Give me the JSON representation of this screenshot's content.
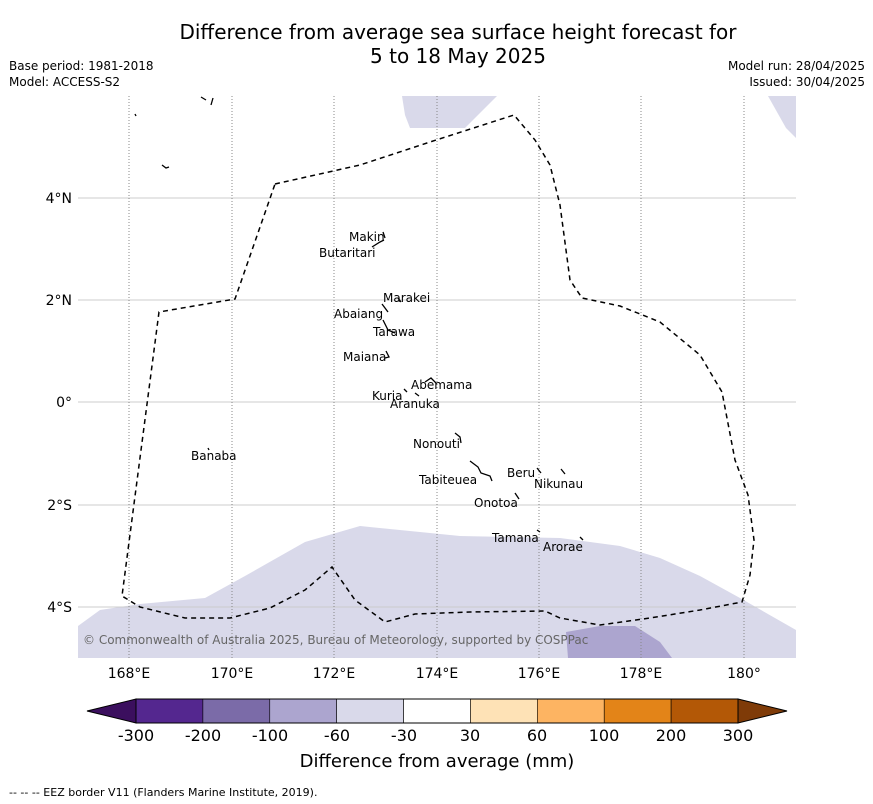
{
  "title_line1": "Difference from average sea surface height forecast for",
  "title_line2": "5 to 18 May 2025",
  "base_period": "Base period: 1981-2018",
  "model": "Model: ACCESS-S2",
  "model_run": "Model run: 28/04/2025",
  "issued": "Issued: 30/04/2025",
  "lon_ticks": [
    "168°E",
    "170°E",
    "172°E",
    "174°E",
    "176°E",
    "178°E",
    "180°"
  ],
  "lat_ticks": [
    "4°N",
    "2°N",
    "0°",
    "2°S",
    "4°S"
  ],
  "islands": [
    "Makin",
    "Butaritari",
    "Marakei",
    "Abaiang",
    "Tarawa",
    "Maiana",
    "Abemama",
    "Kuria",
    "Aranuka",
    "Nonouti",
    "Tabiteuea",
    "Beru",
    "Nikunau",
    "Onotoa",
    "Tamana",
    "Arorae",
    "Banaba"
  ],
  "copyright": "© Commonwealth of Australia 2025, Bureau of Meteorology, supported by COSPPac",
  "colorbar": {
    "title": "Difference from average (mm)",
    "ticks": [
      "-300",
      "-200",
      "-100",
      "-60",
      "-30",
      "30",
      "60",
      "100",
      "200",
      "300"
    ],
    "colors": [
      "#3b0f5e",
      "#54278f",
      "#7b6ba8",
      "#aca5cf",
      "#d9d9ea",
      "#ffffff",
      "#fee2b6",
      "#fdb462",
      "#e38418",
      "#b35806",
      "#7f3b08"
    ]
  },
  "footnote": "-- -- -- EEZ border V11 (Flanders Marine Institute, 2019)."
}
